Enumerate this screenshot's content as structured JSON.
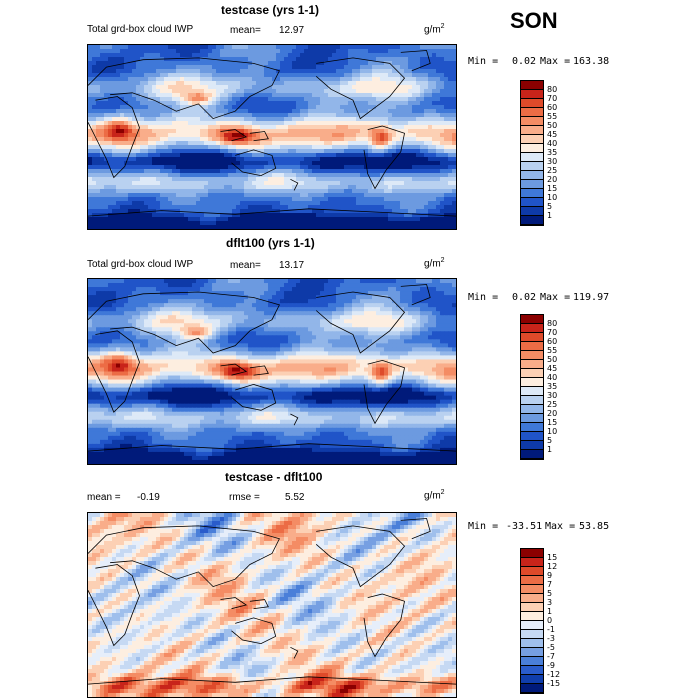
{
  "season": "SON",
  "panels": [
    {
      "title": "testcase (yrs 1-1)",
      "left_label": "Total grd-box cloud IWP",
      "mean_label": "mean=",
      "mean_value": "12.97",
      "units": "g/m",
      "units_sup": "2",
      "min_label": "Min =",
      "min_value": "0.02",
      "max_label": "Max =",
      "max_value": "163.38",
      "levels": [
        "80",
        "70",
        "60",
        "55",
        "50",
        "45",
        "40",
        "35",
        "30",
        "25",
        "20",
        "15",
        "10",
        "5",
        "1"
      ],
      "colors": [
        "#8b0000",
        "#c8241a",
        "#de4a2a",
        "#ec6c45",
        "#f48c64",
        "#f9ad8a",
        "#fcd0b4",
        "#fdeee0",
        "#dde9f7",
        "#b9d1f0",
        "#92b6e9",
        "#6c9ae0",
        "#3f78d8",
        "#2054c8",
        "#0e3aa8",
        "#001a7a"
      ],
      "range": [
        0,
        163.38
      ]
    },
    {
      "title": "dflt100 (yrs 1-1)",
      "left_label": "Total grd-box cloud IWP",
      "mean_label": "mean=",
      "mean_value": "13.17",
      "units": "g/m",
      "units_sup": "2",
      "min_label": "Min =",
      "min_value": "0.02",
      "max_label": "Max =",
      "max_value": "119.97",
      "levels": [
        "80",
        "70",
        "60",
        "55",
        "50",
        "45",
        "40",
        "35",
        "30",
        "25",
        "20",
        "15",
        "10",
        "5",
        "1"
      ],
      "colors": [
        "#8b0000",
        "#c8241a",
        "#de4a2a",
        "#ec6c45",
        "#f48c64",
        "#f9ad8a",
        "#fcd0b4",
        "#fdeee0",
        "#dde9f7",
        "#b9d1f0",
        "#92b6e9",
        "#6c9ae0",
        "#3f78d8",
        "#2054c8",
        "#0e3aa8",
        "#001a7a"
      ],
      "range": [
        0,
        119.97
      ]
    },
    {
      "title": "testcase - dflt100",
      "left_label": "mean =",
      "left_value": "-0.19",
      "rmse_label": "rmse =",
      "rmse_value": "5.52",
      "units": "g/m",
      "units_sup": "2",
      "min_label": "Min =",
      "min_value": "-33.51",
      "max_label": "Max =",
      "max_value": "53.85",
      "levels": [
        "15",
        "12",
        "9",
        "7",
        "5",
        "3",
        "1",
        "0",
        "-1",
        "-3",
        "-5",
        "-7",
        "-9",
        "-12",
        "-15"
      ],
      "colors": [
        "#8b0000",
        "#c8241a",
        "#de4a2a",
        "#ec6c45",
        "#f48c64",
        "#f9ad8a",
        "#fcd0b4",
        "#fdeee0",
        "#e6eefa",
        "#c6d9f3",
        "#9fbfec",
        "#769fe2",
        "#4a7fd9",
        "#2a5ccb",
        "#103eac",
        "#001a7a"
      ],
      "range": [
        -33.51,
        53.85
      ]
    }
  ],
  "chart_data": [
    {
      "type": "heatmap",
      "title": "testcase (yrs 1-1)",
      "subtitle": "Total grd-box cloud IWP",
      "units": "g/m2",
      "mean": 12.97,
      "min": 0.02,
      "max": 163.38,
      "contour_levels": [
        1,
        5,
        10,
        15,
        20,
        25,
        30,
        35,
        40,
        45,
        50,
        55,
        60,
        70,
        80
      ]
    },
    {
      "type": "heatmap",
      "title": "dflt100 (yrs 1-1)",
      "subtitle": "Total grd-box cloud IWP",
      "units": "g/m2",
      "mean": 13.17,
      "min": 0.02,
      "max": 119.97,
      "contour_levels": [
        1,
        5,
        10,
        15,
        20,
        25,
        30,
        35,
        40,
        45,
        50,
        55,
        60,
        70,
        80
      ]
    },
    {
      "type": "heatmap",
      "title": "testcase - dflt100",
      "units": "g/m2",
      "mean": -0.19,
      "rmse": 5.52,
      "min": -33.51,
      "max": 53.85,
      "contour_levels": [
        -15,
        -12,
        -9,
        -7,
        -5,
        -3,
        -1,
        0,
        1,
        3,
        5,
        7,
        9,
        12,
        15
      ]
    }
  ]
}
